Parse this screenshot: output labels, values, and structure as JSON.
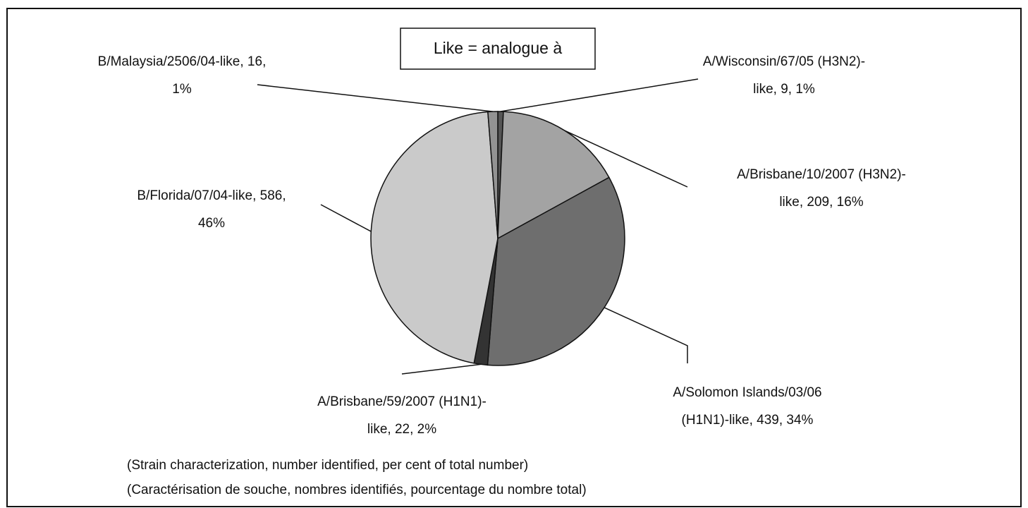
{
  "chart_data": {
    "type": "pie",
    "note": "Like = analogue à",
    "values": [
      9,
      209,
      439,
      22,
      586,
      16
    ],
    "value_labels": [
      [
        "A/Wisconsin/67/05 (H3N2)-",
        "like, 9, 1%"
      ],
      [
        "A/Brisbane/10/2007 (H3N2)-",
        "like, 209, 16%"
      ],
      [
        "A/Solomon Islands/03/06",
        "(H1N1)-like, 439, 34%"
      ],
      [
        "A/Brisbane/59/2007 (H1N1)-",
        "like, 22, 2%"
      ],
      [
        "B/Florida/07/04-like, 586,",
        "46%"
      ],
      [
        "B/Malaysia/2506/04-like, 16,",
        "1%"
      ]
    ],
    "colors": [
      "#555555",
      "#a3a3a3",
      "#6e6e6e",
      "#333333",
      "#cacaca",
      "#939393"
    ],
    "footnotes": [
      "(Strain characterization, number identified, per cent of total number)",
      "(Caractérisation de souche, nombres identifiés, pourcentage du nombre total)"
    ]
  }
}
